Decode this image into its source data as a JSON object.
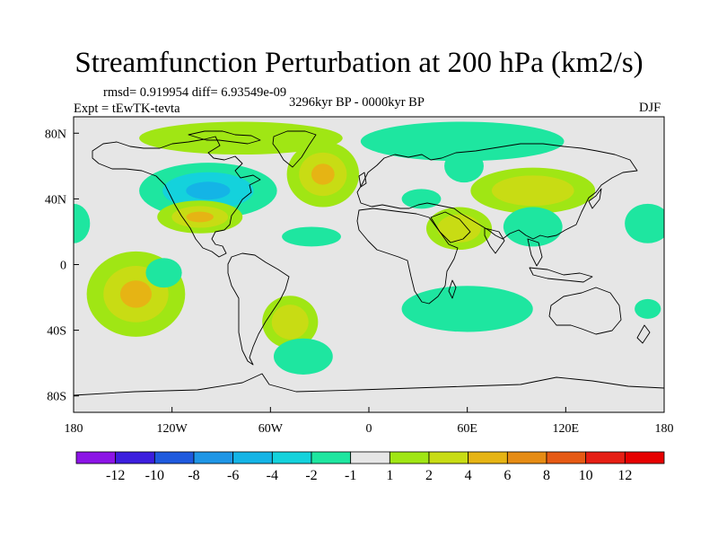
{
  "chart_data": {
    "type": "heatmap",
    "title": "Streamfunction Perturbation at 200 hPa (km2/s)",
    "stats_text": "rmsd= 0.919954 diff= 6.93549e-09",
    "experiment": "Expt = tEwTK-tevta",
    "period": "3296kyr BP - 0000kyr BP",
    "season": "DJF",
    "x_range": [
      -180,
      180
    ],
    "y_range": [
      -90,
      90
    ],
    "x_ticks": [
      {
        "value": -180,
        "label": "180"
      },
      {
        "value": -120,
        "label": "120W"
      },
      {
        "value": -60,
        "label": "60W"
      },
      {
        "value": 0,
        "label": "0"
      },
      {
        "value": 60,
        "label": "60E"
      },
      {
        "value": 120,
        "label": "120E"
      },
      {
        "value": 180,
        "label": "180"
      }
    ],
    "y_ticks": [
      {
        "value": 80,
        "label": "80N"
      },
      {
        "value": 40,
        "label": "40N"
      },
      {
        "value": 0,
        "label": "0"
      },
      {
        "value": -40,
        "label": "40S"
      },
      {
        "value": -80,
        "label": "80S"
      }
    ],
    "colorbar": {
      "labels": [
        "-12",
        "-10",
        "-8",
        "-6",
        "-4",
        "-2",
        "-1",
        "1",
        "2",
        "4",
        "6",
        "8",
        "10",
        "12"
      ],
      "colors": [
        "#8c14e6",
        "#3c1ede",
        "#1e5ade",
        "#1e96e6",
        "#14b4e6",
        "#14d2dc",
        "#1ee6a0",
        "#e6e6e6",
        "#a0e614",
        "#c8dc14",
        "#e6b414",
        "#e68c14",
        "#e65a14",
        "#e61e14",
        "#e60000"
      ]
    },
    "background_color": "#e6e6e6",
    "anomalies": [
      {
        "lon": -98,
        "lat": 45,
        "rlon": 42,
        "rlat": 17,
        "levels": [
          -1,
          -2,
          -4
        ]
      },
      {
        "lon": -78,
        "lat": 77,
        "rlon": 62,
        "rlat": 10,
        "levels": [
          1
        ]
      },
      {
        "lon": -103,
        "lat": 29,
        "rlon": 26,
        "rlat": 10,
        "levels": [
          1,
          2,
          4
        ]
      },
      {
        "lon": -28,
        "lat": 55,
        "rlon": 22,
        "rlat": 20,
        "levels": [
          1,
          2,
          4
        ]
      },
      {
        "lon": -35,
        "lat": 17,
        "rlon": 18,
        "rlat": 6,
        "levels": [
          -1
        ]
      },
      {
        "lon": 57,
        "lat": 75,
        "rlon": 62,
        "rlat": 12,
        "levels": [
          -1
        ]
      },
      {
        "lon": 58,
        "lat": 60,
        "rlon": 12,
        "rlat": 10,
        "levels": [
          -1
        ]
      },
      {
        "lon": 32,
        "lat": 40,
        "rlon": 12,
        "rlat": 6,
        "levels": [
          -1
        ]
      },
      {
        "lon": 55,
        "lat": 22,
        "rlon": 20,
        "rlat": 13,
        "levels": [
          1,
          2
        ]
      },
      {
        "lon": 100,
        "lat": 45,
        "rlon": 38,
        "rlat": 14,
        "levels": [
          1,
          2
        ]
      },
      {
        "lon": 100,
        "lat": 23,
        "rlon": 18,
        "rlat": 12,
        "levels": [
          -1
        ]
      },
      {
        "lon": 170,
        "lat": 25,
        "rlon": 14,
        "rlat": 12,
        "levels": [
          -1
        ]
      },
      {
        "lon": -180,
        "lat": 25,
        "rlon": 10,
        "rlat": 12,
        "levels": [
          -1
        ]
      },
      {
        "lon": -142,
        "lat": -18,
        "rlon": 30,
        "rlat": 26,
        "levels": [
          1,
          2,
          4
        ]
      },
      {
        "lon": -125,
        "lat": -5,
        "rlon": 11,
        "rlat": 9,
        "levels": [
          -1
        ]
      },
      {
        "lon": -48,
        "lat": -35,
        "rlon": 17,
        "rlat": 16,
        "levels": [
          1,
          2
        ]
      },
      {
        "lon": -40,
        "lat": -56,
        "rlon": 18,
        "rlat": 11,
        "levels": [
          -1
        ]
      },
      {
        "lon": 60,
        "lat": -27,
        "rlon": 40,
        "rlat": 14,
        "levels": [
          -1
        ]
      },
      {
        "lon": 170,
        "lat": -27,
        "rlon": 8,
        "rlat": 6,
        "levels": [
          -1
        ]
      }
    ]
  }
}
